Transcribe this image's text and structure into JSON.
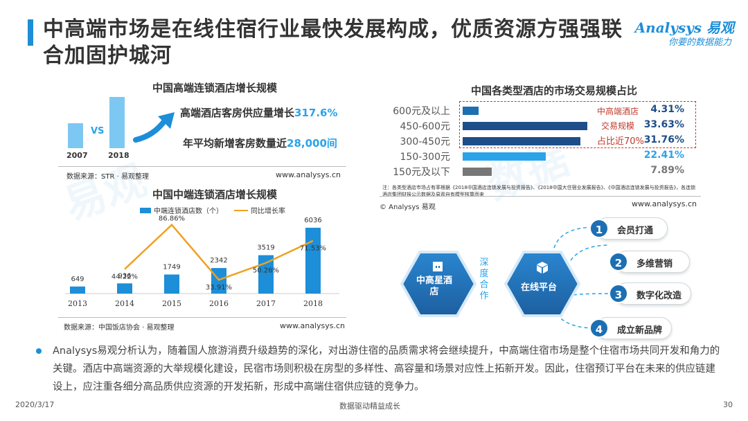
{
  "title": "中高端市场是在线住宿行业最快发展构成，优质资源方强强联合加固护城河",
  "logo": {
    "brand": "Analysys 易观",
    "slogan": "你要的数据能力"
  },
  "chart1": {
    "title": "中国高端连锁酒店增长规模",
    "vs": "VS",
    "years": [
      "2007",
      "2018"
    ],
    "stat1_prefix": "高端酒店客房供应量增长",
    "stat1_value": "317.6%",
    "stat2_prefix": "年平均新增客房数量近",
    "stat2_value": "28,000间",
    "source": "数据来源：STR · 易观整理",
    "url": "www.analysys.cn"
  },
  "chart2": {
    "title": "中国中端连锁酒店增长规模",
    "source": "数据来源：中国饭店协会 · 易观整理",
    "url": "www.analysys.cn"
  },
  "chart3": {
    "title": "中国各类型酒店的市场交易规模占比",
    "highlight": [
      "中高端酒店",
      "交易规模",
      "占比近70%"
    ],
    "note": "注：各类型酒店市场占有率根据《2018中国酒店连锁发展与投资报告》、《2018中国大住宿业发展报告》、《中国酒店连锁发展与投资报告》，各连锁酒店集团财报公示数据及易观自有模型核算而来",
    "copyright": "© Analysys 易观",
    "url": "www.analysys.cn"
  },
  "chart_data": [
    {
      "type": "bar",
      "title": "中国高端连锁酒店增长规模",
      "categories": [
        "2007",
        "2018"
      ],
      "values": [
        1,
        4.176
      ]
    },
    {
      "type": "bar",
      "title": "中国中端连锁酒店增长规模",
      "categories": [
        "2013",
        "2014",
        "2015",
        "2016",
        "2017",
        "2018"
      ],
      "series": [
        {
          "name": "中端连锁酒店数（个）",
          "type": "bar",
          "values": [
            649,
            936,
            1749,
            2342,
            3519,
            6036
          ],
          "labels": [
            "649",
            "936",
            "1749",
            "2342",
            "3519",
            "6036"
          ],
          "color": "#1d8ed8"
        },
        {
          "name": "同比增长率",
          "type": "line",
          "values": [
            null,
            44.22,
            86.86,
            33.91,
            50.26,
            71.53
          ],
          "labels": [
            "",
            "44.22%",
            "86.86%",
            "33.91%",
            "50.26%",
            "71.53%"
          ],
          "color": "#f0a020"
        }
      ]
    },
    {
      "type": "bar",
      "orientation": "horizontal",
      "title": "中国各类型酒店的市场交易规模占比",
      "categories": [
        "600元及以上",
        "450-600元",
        "300-450元",
        "150-300元",
        "150元及以下"
      ],
      "values": [
        4.31,
        33.63,
        31.76,
        22.41,
        7.89
      ],
      "labels": [
        "4.31%",
        "33.63%",
        "31.76%",
        "22.41%",
        "7.89%"
      ],
      "colors": [
        "#1d6fb3",
        "#1d4e89",
        "#1d4e89",
        "#2aa3e8",
        "#777777"
      ],
      "label_colors": [
        "#1d4e89",
        "#1d4e89",
        "#1d4e89",
        "#2aa3e8",
        "#777777"
      ]
    }
  ],
  "diagram": {
    "left_node": "中高星酒店",
    "middle_text": "深度合作",
    "right_node": "在线平台",
    "items": [
      {
        "num": "1",
        "label": "会员打通"
      },
      {
        "num": "2",
        "label": "多维营销"
      },
      {
        "num": "3",
        "label": "数字化改造"
      },
      {
        "num": "4",
        "label": "成立新品牌"
      }
    ]
  },
  "paragraph": "Analysys易观分析认为，随着国人旅游消费升级趋势的深化，对出游住宿的品质需求将会继续提升，中高端住宿市场是整个住宿市场共同开发和角力的关键。酒店中高端资源的大举规模化建设，民宿市场则积极在房型的多样性、高容量和场景对应性上拓新开发。因此，住宿预订平台在未来的供应链建设上，应注重各细分高品质供应资源的开发拓新，形成中高端住宿供应链的竞争力。",
  "footer": {
    "date": "2020/3/17",
    "center": "数据驱动精益成长",
    "page": "30"
  },
  "colors": {
    "accent": "#1d8ed8",
    "red": "#c0392b",
    "orange": "#f0a020"
  }
}
